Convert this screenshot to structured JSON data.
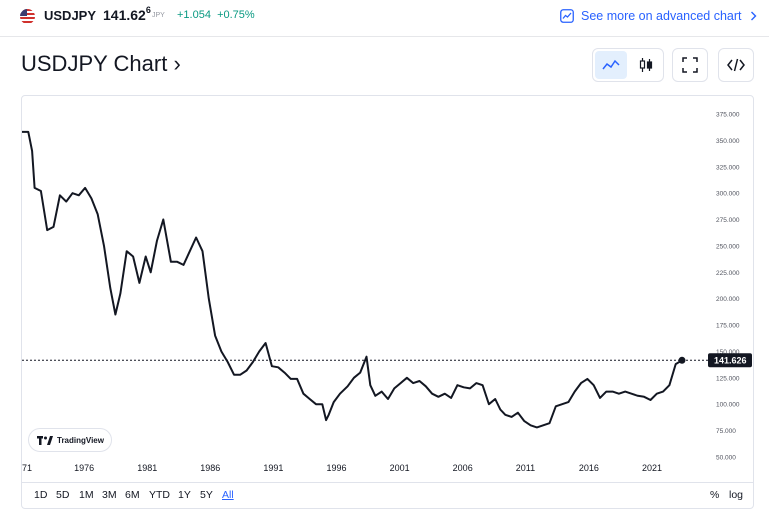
{
  "header": {
    "symbol": "USDJPY",
    "price_main": "141.62",
    "price_sup": "6",
    "currency": "JPY",
    "change": "+1.054",
    "change_pct": "+0.75%",
    "advanced_link": "See more on advanced chart",
    "change_color": "#089981",
    "link_color": "#2962ff"
  },
  "title": "USDJPY Chart",
  "toolbar": {
    "line_icon": "line-chart-icon",
    "candle_icon": "candles-icon",
    "fullscreen_icon": "fullscreen-icon",
    "embed_icon": "embed-code-icon",
    "active": "line"
  },
  "watermark": "TradingView",
  "ranges": [
    "1D",
    "5D",
    "1M",
    "3M",
    "6M",
    "YTD",
    "1Y",
    "5Y",
    "All"
  ],
  "active_range": "All",
  "scale_buttons": {
    "percent": "%",
    "log": "log"
  },
  "chart_data": {
    "type": "line",
    "title": "",
    "xlabel": "",
    "ylabel": "",
    "x_tick_labels": [
      "71",
      "1976",
      "1981",
      "1986",
      "1991",
      "1996",
      "2001",
      "2006",
      "2011",
      "2016",
      "2021"
    ],
    "y_tick_labels": [
      "375.000",
      "350.000",
      "325.000",
      "300.000",
      "275.000",
      "250.000",
      "225.000",
      "200.000",
      "175.000",
      "150.000",
      "125.000",
      "100.000",
      "75.000",
      "50.000"
    ],
    "ylim": [
      50,
      375
    ],
    "last_value": 141.626,
    "last_label": "141.626",
    "series": [
      {
        "x": [
          1971.0,
          1971.5,
          1971.8,
          1972.0,
          1972.5,
          1973.0,
          1973.5,
          1974.0,
          1974.5,
          1975.0,
          1975.5,
          1976.0,
          1976.5,
          1977.0,
          1977.5,
          1978.0,
          1978.4,
          1978.8,
          1979.3,
          1979.8,
          1980.3,
          1980.8,
          1981.2,
          1981.7,
          1982.2,
          1982.8,
          1983.3,
          1983.8,
          1984.3,
          1984.8,
          1985.3,
          1985.8,
          1986.3,
          1986.8,
          1987.3,
          1987.8,
          1988.3,
          1988.8,
          1989.3,
          1989.8,
          1990.3,
          1990.8,
          1991.3,
          1991.8,
          1992.3,
          1992.8,
          1993.3,
          1993.8,
          1994.3,
          1994.8,
          1995.1,
          1995.3,
          1995.7,
          1996.2,
          1996.8,
          1997.3,
          1997.8,
          1998.3,
          1998.6,
          1999.0,
          1999.5,
          2000.0,
          2000.5,
          2001.0,
          2001.5,
          2002.0,
          2002.5,
          2003.0,
          2003.5,
          2004.0,
          2004.5,
          2005.0,
          2005.5,
          2006.0,
          2006.5,
          2007.0,
          2007.5,
          2008.0,
          2008.5,
          2008.9,
          2009.3,
          2009.8,
          2010.3,
          2010.8,
          2011.3,
          2011.8,
          2012.3,
          2012.8,
          2013.3,
          2013.8,
          2014.3,
          2014.8,
          2015.3,
          2015.8,
          2016.3,
          2016.8,
          2017.3,
          2017.8,
          2018.3,
          2018.8,
          2019.3,
          2019.8,
          2020.3,
          2020.8,
          2021.3,
          2021.8,
          2022.3,
          2022.8,
          2023.3
        ],
        "values": [
          358,
          358,
          340,
          305,
          302,
          265,
          268,
          298,
          292,
          300,
          298,
          305,
          295,
          280,
          250,
          210,
          185,
          205,
          245,
          240,
          215,
          240,
          225,
          255,
          275,
          235,
          235,
          232,
          245,
          258,
          245,
          200,
          165,
          150,
          140,
          128,
          128,
          132,
          140,
          150,
          158,
          136,
          135,
          130,
          124,
          124,
          110,
          105,
          100,
          100,
          85,
          90,
          102,
          110,
          117,
          125,
          130,
          145,
          118,
          108,
          112,
          105,
          115,
          120,
          125,
          120,
          122,
          117,
          110,
          107,
          110,
          106,
          118,
          116,
          115,
          120,
          118,
          100,
          105,
          95,
          90,
          88,
          92,
          84,
          80,
          78,
          80,
          82,
          98,
          100,
          102,
          112,
          120,
          124,
          118,
          106,
          112,
          112,
          110,
          112,
          110,
          108,
          107,
          104,
          110,
          112,
          118,
          138,
          141.626
        ]
      }
    ]
  }
}
